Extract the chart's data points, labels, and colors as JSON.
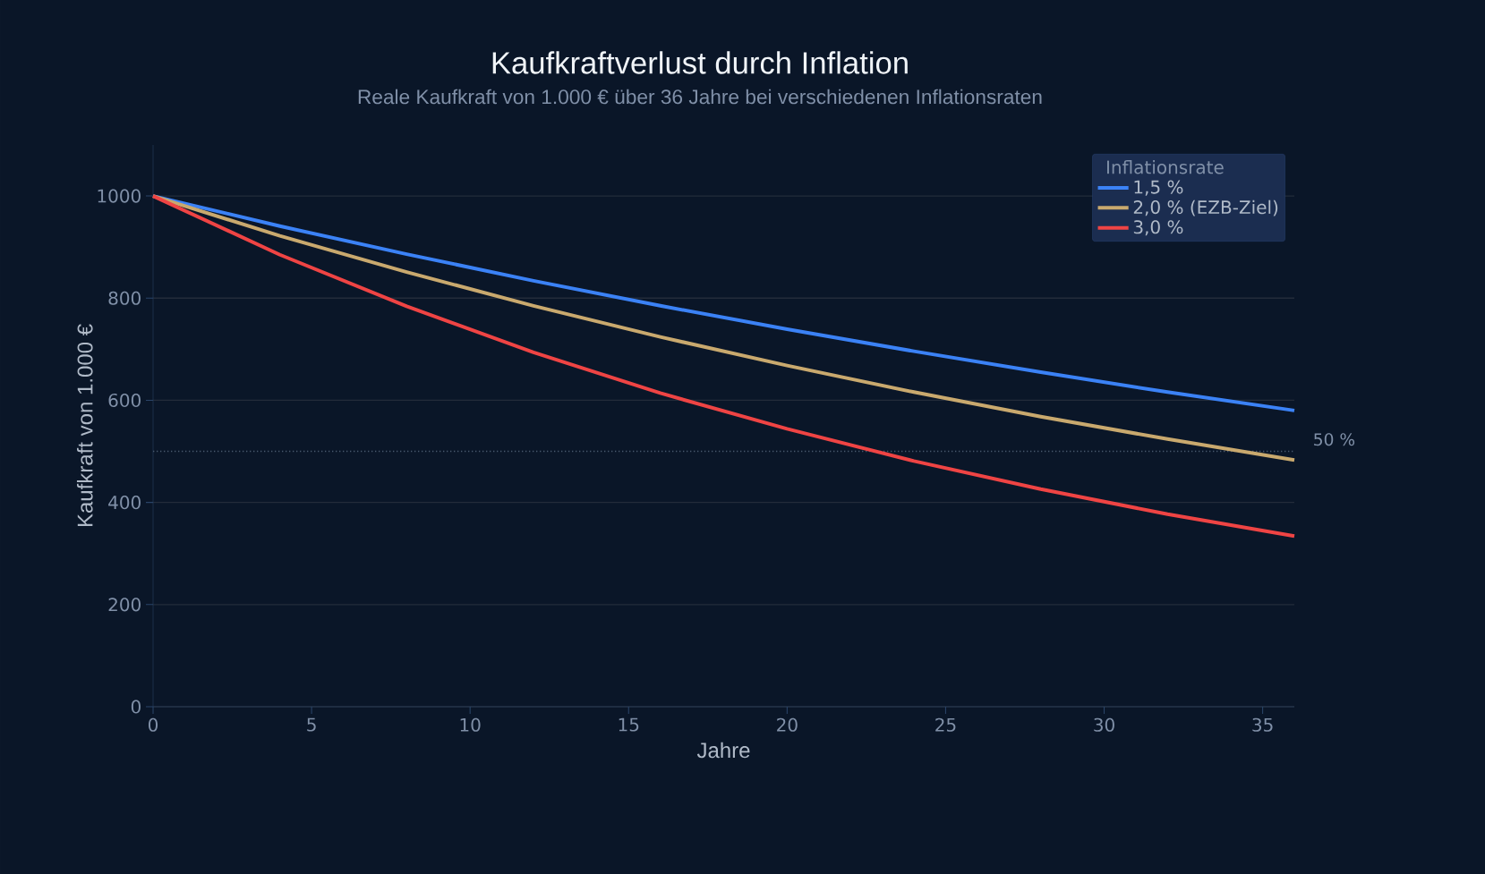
{
  "chart_data": {
    "type": "line",
    "title": "Kaufkraftverlust durch Inflation",
    "subtitle": "Reale Kaufkraft von 1.000 € über 36 Jahre bei verschiedenen Inflationsraten",
    "xlabel": "Jahre",
    "ylabel": "Kaufkraft von 1.000 €",
    "legend_title": "Inflationsrate",
    "x": [
      0,
      4,
      8,
      12,
      16,
      20,
      24,
      28,
      32,
      36
    ],
    "series": [
      {
        "name": "1,5 %",
        "color": "#3b82f6",
        "values": [
          1000,
          941,
          886,
          834,
          785,
          739,
          696,
          655,
          616,
          580
        ]
      },
      {
        "name": "2,0 % (EZB-Ziel)",
        "color": "#c9a96e",
        "values": [
          1000,
          922,
          851,
          785,
          724,
          668,
          616,
          568,
          524,
          483
        ]
      },
      {
        "name": "3,0 %",
        "color": "#ef4444",
        "values": [
          1000,
          885,
          784,
          694,
          614,
          544,
          481,
          426,
          377,
          334
        ]
      }
    ],
    "xlim": [
      0,
      36
    ],
    "ylim": [
      0,
      1100
    ],
    "xticks": [
      0,
      5,
      10,
      15,
      20,
      25,
      30,
      35
    ],
    "yticks": [
      0,
      200,
      400,
      600,
      800,
      1000
    ],
    "ref_lines": [
      {
        "axis": "y",
        "value": 500,
        "color": "#4a5a6e",
        "line_style": "dotted"
      }
    ],
    "annotations": [
      "50 %"
    ],
    "grid": "y",
    "legend": "top right",
    "marker": "none",
    "line_style": "solid"
  }
}
